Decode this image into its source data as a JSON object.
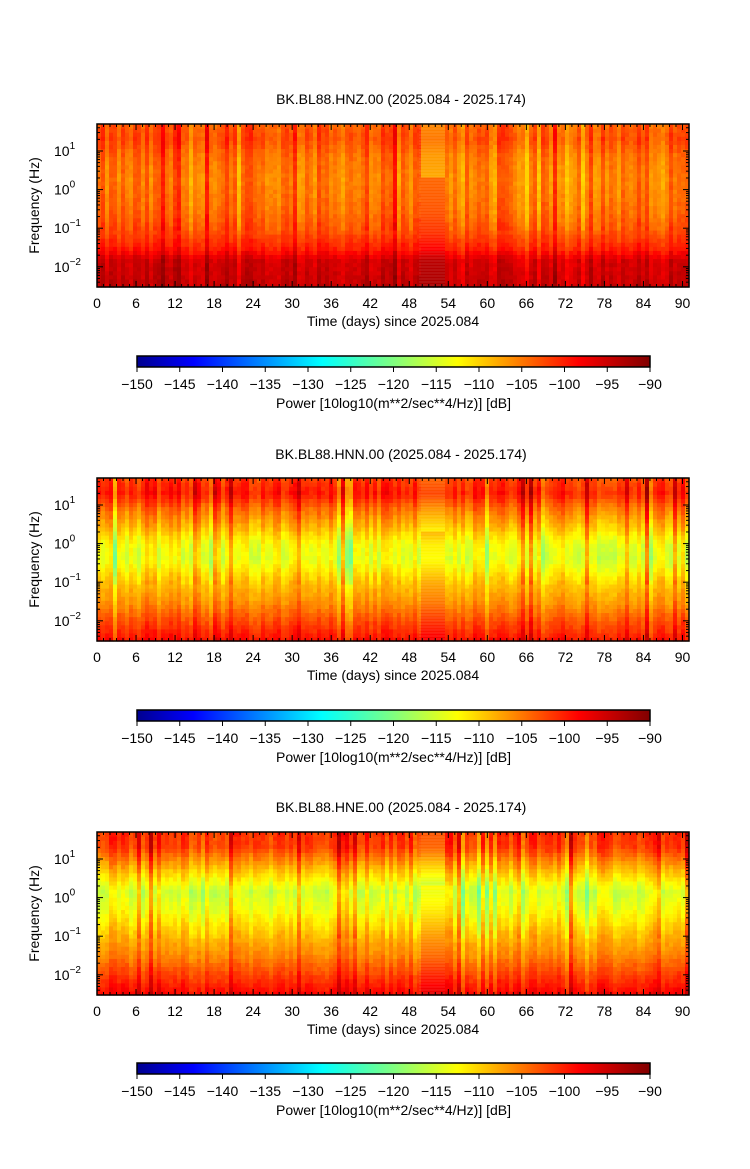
{
  "chart_data": [
    {
      "type": "heatmap",
      "title": "BK.BL88.HNZ.00 (2025.084 - 2025.174)",
      "xlabel": "Time (days) since 2025.084",
      "ylabel": "Frequency (Hz)",
      "xlim": [
        0,
        91
      ],
      "x_ticks": [
        0,
        6,
        12,
        18,
        24,
        30,
        36,
        42,
        48,
        54,
        60,
        66,
        72,
        78,
        84,
        90
      ],
      "x_tick_labels": [
        "0",
        "6",
        "12",
        "18",
        "24",
        "30",
        "36",
        "42",
        "48",
        "54",
        "60",
        "66",
        "72",
        "78",
        "84",
        "90"
      ],
      "yscale": "log",
      "ylim": [
        0.003,
        50
      ],
      "y_ticks": [
        0.01,
        0.1,
        1,
        10
      ],
      "y_tick_labels": [
        [
          "10",
          "−2"
        ],
        [
          "10",
          "−1"
        ],
        [
          "10",
          "0"
        ],
        [
          "10",
          "1"
        ]
      ],
      "gap_days": [
        49.5,
        53.5
      ],
      "profile": [
        {
          "f": 0.003,
          "db": -94
        },
        {
          "f": 0.015,
          "db": -95
        },
        {
          "f": 0.03,
          "db": -99
        },
        {
          "f": 0.08,
          "db": -102
        },
        {
          "f": 0.3,
          "db": -104
        },
        {
          "f": 2,
          "db": -105
        },
        {
          "f": 8,
          "db": -104
        },
        {
          "f": 20,
          "db": -102
        },
        {
          "f": 50,
          "db": -103
        }
      ],
      "colorbar": {
        "label": "Power [10log10(m**2/sec**4/Hz)] [dB]",
        "min": -150,
        "max": -90,
        "ticks": [
          -150,
          -145,
          -140,
          -135,
          -130,
          -125,
          -120,
          -115,
          -110,
          -105,
          -100,
          -95,
          -90
        ],
        "tick_labels": [
          "−150",
          "−145",
          "−140",
          "−135",
          "−130",
          "−125",
          "−120",
          "−115",
          "−110",
          "−105",
          "−100",
          "−95",
          "−90"
        ]
      }
    },
    {
      "type": "heatmap",
      "title": "BK.BL88.HNN.00 (2025.084 - 2025.174)",
      "xlabel": "Time (days) since 2025.084",
      "ylabel": "Frequency (Hz)",
      "xlim": [
        0,
        91
      ],
      "x_ticks": [
        0,
        6,
        12,
        18,
        24,
        30,
        36,
        42,
        48,
        54,
        60,
        66,
        72,
        78,
        84,
        90
      ],
      "x_tick_labels": [
        "0",
        "6",
        "12",
        "18",
        "24",
        "30",
        "36",
        "42",
        "48",
        "54",
        "60",
        "66",
        "72",
        "78",
        "84",
        "90"
      ],
      "yscale": "log",
      "ylim": [
        0.003,
        50
      ],
      "y_ticks": [
        0.01,
        0.1,
        1,
        10
      ],
      "y_tick_labels": [
        [
          "10",
          "−2"
        ],
        [
          "10",
          "−1"
        ],
        [
          "10",
          "0"
        ],
        [
          "10",
          "1"
        ]
      ],
      "gap_days": [
        49.5,
        53.5
      ],
      "profile": [
        {
          "f": 0.003,
          "db": -98
        },
        {
          "f": 0.01,
          "db": -102
        },
        {
          "f": 0.03,
          "db": -106
        },
        {
          "f": 0.1,
          "db": -109
        },
        {
          "f": 0.4,
          "db": -114
        },
        {
          "f": 1,
          "db": -113
        },
        {
          "f": 3,
          "db": -108
        },
        {
          "f": 8,
          "db": -104
        },
        {
          "f": 20,
          "db": -99
        },
        {
          "f": 50,
          "db": -101
        }
      ],
      "colorbar": {
        "label": "Power [10log10(m**2/sec**4/Hz)] [dB]",
        "min": -150,
        "max": -90,
        "ticks": [
          -150,
          -145,
          -140,
          -135,
          -130,
          -125,
          -120,
          -115,
          -110,
          -105,
          -100,
          -95,
          -90
        ],
        "tick_labels": [
          "−150",
          "−145",
          "−140",
          "−135",
          "−130",
          "−125",
          "−120",
          "−115",
          "−110",
          "−105",
          "−100",
          "−95",
          "−90"
        ]
      }
    },
    {
      "type": "heatmap",
      "title": "BK.BL88.HNE.00 (2025.084 - 2025.174)",
      "xlabel": "Time (days) since 2025.084",
      "ylabel": "Frequency (Hz)",
      "xlim": [
        0,
        91
      ],
      "x_ticks": [
        0,
        6,
        12,
        18,
        24,
        30,
        36,
        42,
        48,
        54,
        60,
        66,
        72,
        78,
        84,
        90
      ],
      "x_tick_labels": [
        "0",
        "6",
        "12",
        "18",
        "24",
        "30",
        "36",
        "42",
        "48",
        "54",
        "60",
        "66",
        "72",
        "78",
        "84",
        "90"
      ],
      "yscale": "log",
      "ylim": [
        0.003,
        50
      ],
      "y_ticks": [
        0.01,
        0.1,
        1,
        10
      ],
      "y_tick_labels": [
        [
          "10",
          "−2"
        ],
        [
          "10",
          "−1"
        ],
        [
          "10",
          "0"
        ],
        [
          "10",
          "1"
        ]
      ],
      "gap_days": [
        49.5,
        53.5
      ],
      "profile": [
        {
          "f": 0.003,
          "db": -97
        },
        {
          "f": 0.01,
          "db": -101
        },
        {
          "f": 0.03,
          "db": -105
        },
        {
          "f": 0.1,
          "db": -108
        },
        {
          "f": 0.5,
          "db": -113
        },
        {
          "f": 1.5,
          "db": -115
        },
        {
          "f": 4,
          "db": -110
        },
        {
          "f": 10,
          "db": -105
        },
        {
          "f": 20,
          "db": -101
        },
        {
          "f": 50,
          "db": -100
        }
      ],
      "colorbar": {
        "label": "Power [10log10(m**2/sec**4/Hz)] [dB]",
        "min": -150,
        "max": -90,
        "ticks": [
          -150,
          -145,
          -140,
          -135,
          -130,
          -125,
          -120,
          -115,
          -110,
          -105,
          -100,
          -95,
          -90
        ],
        "tick_labels": [
          "−150",
          "−145",
          "−140",
          "−135",
          "−130",
          "−125",
          "−120",
          "−115",
          "−110",
          "−105",
          "−100",
          "−95",
          "−90"
        ]
      }
    }
  ]
}
